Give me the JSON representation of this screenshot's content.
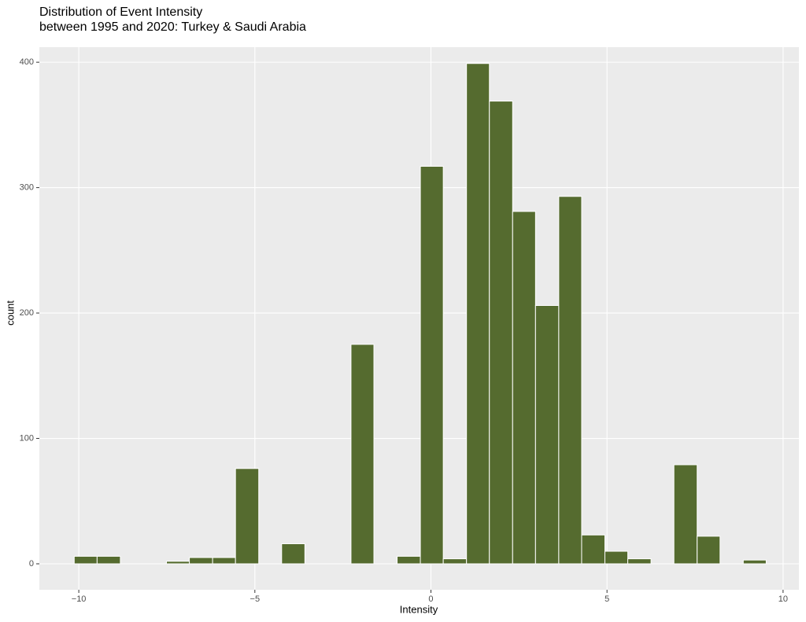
{
  "chart_data": {
    "type": "histogram",
    "title": "Distribution of Event Intensity",
    "subtitle": "between 1995 and 2020: Turkey & Saudi Arabia",
    "x_label": "Intensity",
    "y_label": "count",
    "bins": [
      -10.13,
      -9.48,
      -8.82,
      -8.17,
      -7.51,
      -6.86,
      -6.2,
      -5.55,
      -4.89,
      -4.24,
      -3.58,
      -2.93,
      -2.27,
      -1.62,
      -0.96,
      -0.3,
      0.35,
      1.01,
      1.66,
      2.32,
      2.97,
      3.63,
      4.28,
      4.94,
      5.59,
      6.25,
      6.9,
      7.56,
      8.21,
      8.87,
      9.52
    ],
    "values": [
      6,
      6,
      0,
      0,
      2,
      5,
      5,
      76,
      0,
      16,
      0,
      0,
      175,
      0,
      6,
      317,
      4,
      399,
      369,
      281,
      206,
      293,
      23,
      10,
      4,
      0,
      79,
      22,
      0,
      3
    ],
    "color": "#556b2f",
    "xlim": [
      -11.12,
      10.45
    ],
    "ylim": [
      -20.7,
      412
    ],
    "xticks": [
      {
        "value": -10,
        "label": "−10"
      },
      {
        "value": -5,
        "label": "−5"
      },
      0,
      5,
      10
    ],
    "yticks": [
      0,
      100,
      200,
      300,
      400
    ],
    "grid": true
  }
}
